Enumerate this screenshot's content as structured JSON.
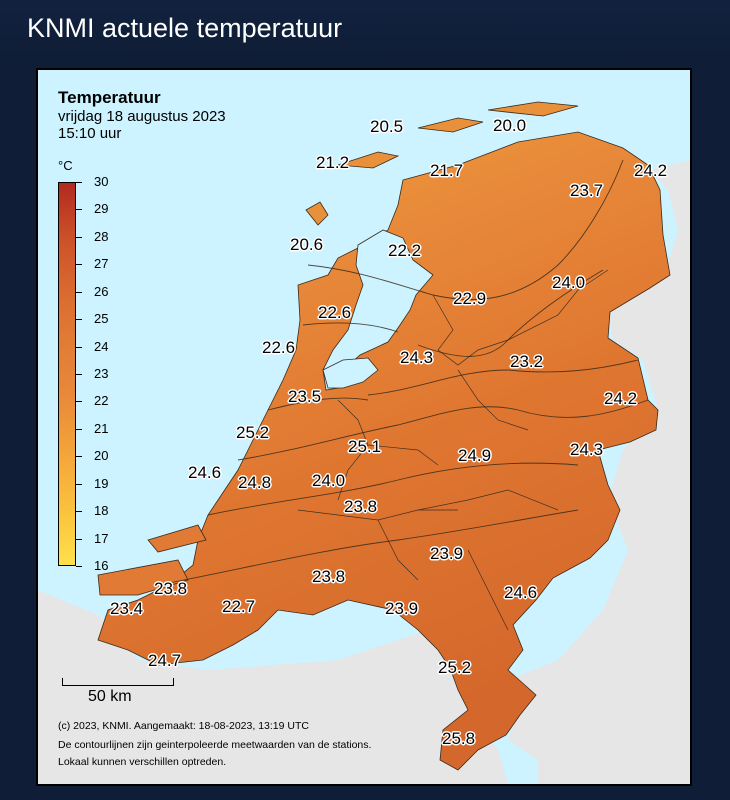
{
  "header": {
    "title": "KNMI actuele temperatuur"
  },
  "map": {
    "title": "Temperatuur",
    "date": "vrijdag 18 augustus 2023",
    "time": "15:10 uur",
    "unit": "°C",
    "colors": {
      "sea": "#ccf3ff",
      "land_outside": "#e6e6e6",
      "legend_low": "#ffe04a",
      "legend_high": "#b22a1f"
    },
    "legend": {
      "min": 16,
      "max": 30,
      "labels": [
        "30",
        "29",
        "28",
        "27",
        "26",
        "25",
        "24",
        "23",
        "22",
        "21",
        "20",
        "19",
        "18",
        "17",
        "16"
      ]
    },
    "stations": [
      "20.5",
      "20.0",
      "21.2",
      "21.7",
      "24.2",
      "23.7",
      "20.6",
      "22.2",
      "24.0",
      "22.9",
      "22.6",
      "24.3",
      "23.2",
      "22.6",
      "24.2",
      "23.5",
      "25.2",
      "25.1",
      "24.9",
      "24.3",
      "24.6",
      "24.8",
      "24.0",
      "23.8",
      "23.9",
      "23.8",
      "23.9",
      "23.4",
      "22.7",
      "23.8",
      "24.6",
      "24.7",
      "25.2",
      "25.8"
    ],
    "scale": {
      "label": "50 km"
    },
    "footer": [
      "(c) 2023, KNMI. Aangemaakt: 18-08-2023, 13:19 UTC",
      "De contourlijnen zijn geinterpoleerde meetwaarden van de stations.",
      "Lokaal kunnen verschillen optreden."
    ]
  }
}
